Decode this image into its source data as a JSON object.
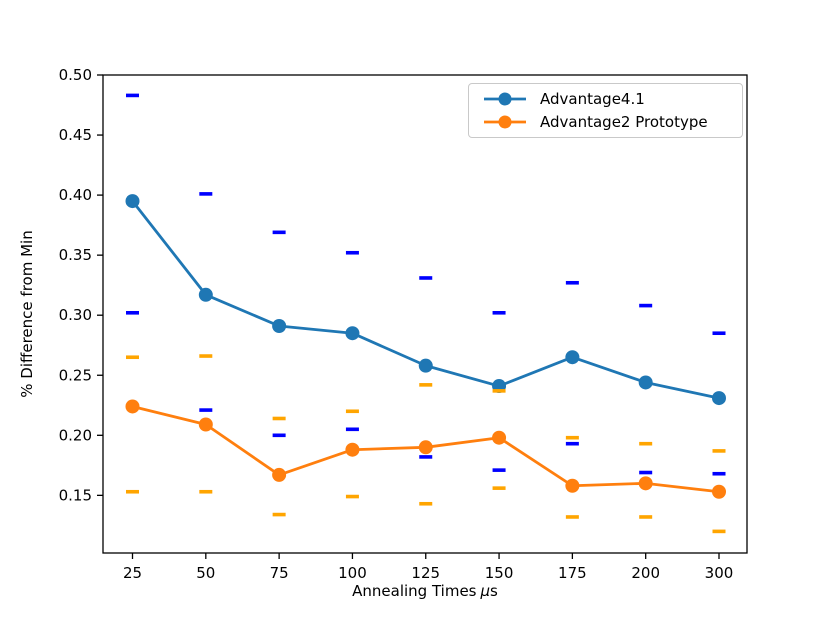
{
  "figure": {
    "background": "#ffffff"
  },
  "chart_data": {
    "type": "line",
    "title": "",
    "xlabel": "Annealing Times μs",
    "xlabel_parts": {
      "text": "Annealing Times",
      "mu": "μ",
      "unit": "s"
    },
    "ylabel": "% Difference from Min",
    "categories": [
      "25",
      "50",
      "75",
      "100",
      "125",
      "150",
      "175",
      "200",
      "300"
    ],
    "yticks": [
      0.15,
      0.2,
      0.25,
      0.3,
      0.35,
      0.4,
      0.45,
      0.5
    ],
    "ylim": [
      0.102,
      0.5
    ],
    "grid": false,
    "legend_position": "upper right",
    "series": [
      {
        "name": "Advantage4.1",
        "color": "#1f77b4",
        "marker": "circle",
        "values": [
          0.395,
          0.317,
          0.291,
          0.285,
          0.258,
          0.241,
          0.265,
          0.244,
          0.231
        ],
        "range": {
          "cap_color": "#0000ff",
          "max": [
            0.483,
            0.401,
            0.369,
            0.352,
            0.331,
            0.302,
            0.327,
            0.308,
            0.285
          ],
          "min": [
            0.302,
            0.221,
            0.2,
            0.205,
            0.182,
            0.171,
            0.193,
            0.169,
            0.168
          ]
        }
      },
      {
        "name": "Advantage2 Prototype",
        "color": "#ff7f0e",
        "marker": "circle",
        "values": [
          0.224,
          0.209,
          0.167,
          0.188,
          0.19,
          0.198,
          0.158,
          0.16,
          0.153
        ],
        "range": {
          "cap_color": "#ffa500",
          "max": [
            0.265,
            0.266,
            0.214,
            0.22,
            0.242,
            0.237,
            0.198,
            0.193,
            0.187
          ],
          "min": [
            0.153,
            0.153,
            0.134,
            0.149,
            0.143,
            0.156,
            0.132,
            0.132,
            0.12
          ]
        }
      }
    ]
  }
}
